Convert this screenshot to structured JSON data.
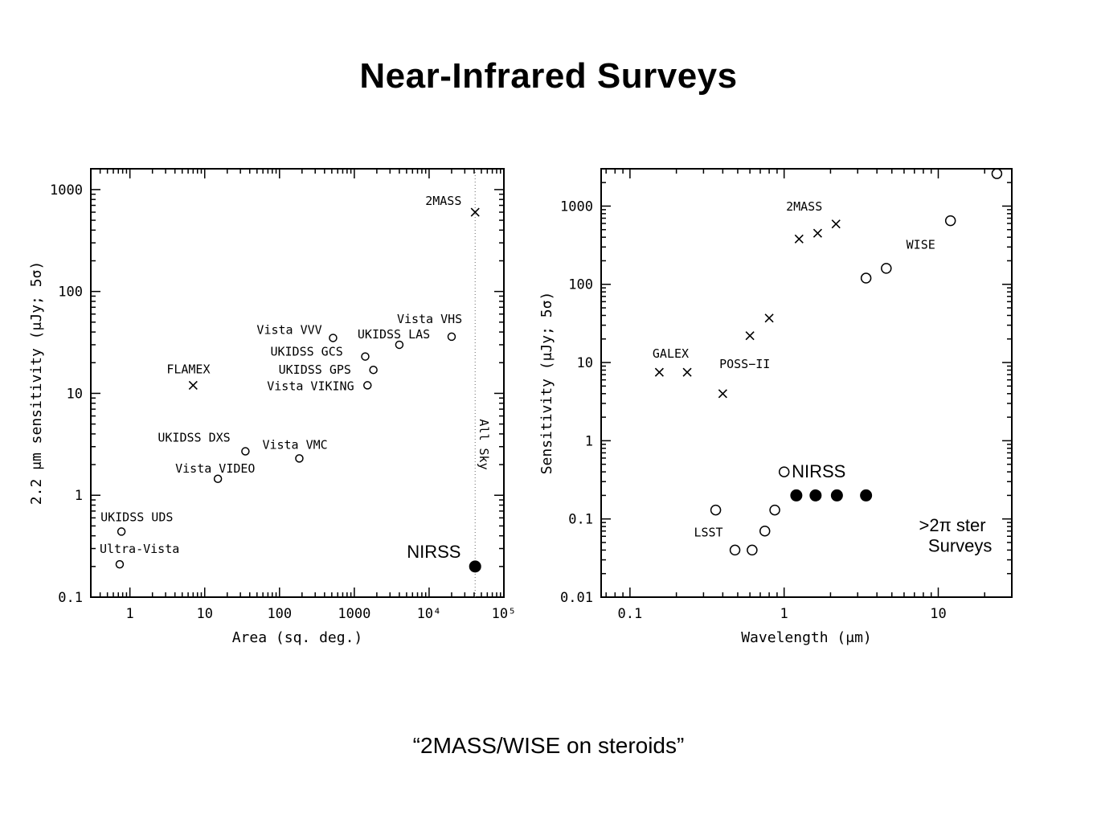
{
  "slide": {
    "title": "Near-Infrared Surveys",
    "caption": "“2MASS/WISE on steroids”"
  },
  "chart_data": [
    {
      "type": "scatter",
      "xscale": "log",
      "yscale": "log",
      "xlim": [
        0.3,
        100000
      ],
      "ylim": [
        0.1,
        1600
      ],
      "xlabel": "Area (sq. deg.)",
      "ylabel": "2.2 μm sensitivity (μJy; 5σ)",
      "xticks": [
        {
          "v": 1,
          "label": "1"
        },
        {
          "v": 10,
          "label": "10"
        },
        {
          "v": 100,
          "label": "100"
        },
        {
          "v": 1000,
          "label": "1000"
        },
        {
          "v": 10000,
          "label": "10⁴"
        },
        {
          "v": 100000,
          "label": "10⁵"
        }
      ],
      "yticks": [
        {
          "v": 0.1,
          "label": "0.1"
        },
        {
          "v": 1,
          "label": "1"
        },
        {
          "v": 10,
          "label": "10"
        },
        {
          "v": 100,
          "label": "100"
        },
        {
          "v": 1000,
          "label": "1000"
        }
      ],
      "all_sky": {
        "x": 41253,
        "label": "All Sky"
      },
      "points": [
        {
          "name": "2MASS",
          "x": 41253,
          "y": 600,
          "marker": "x",
          "label": "2MASS",
          "lx": -62,
          "ly": -9,
          "anchor": "start"
        },
        {
          "name": "FLAMEX",
          "x": 7,
          "y": 12,
          "marker": "x",
          "label": "FLAMEX",
          "lx": -33,
          "ly": -15,
          "anchor": "start"
        },
        {
          "name": "Vista VVV",
          "x": 520,
          "y": 35,
          "marker": "o",
          "label": "Vista VVV",
          "lx": -95,
          "ly": -5,
          "anchor": "start"
        },
        {
          "name": "UKIDSS GCS",
          "x": 1400,
          "y": 23,
          "marker": "o",
          "label": "UKIDSS GCS",
          "lx": -118,
          "ly": -1,
          "anchor": "start"
        },
        {
          "name": "UKIDSS GPS",
          "x": 1800,
          "y": 17,
          "marker": "o",
          "label": "UKIDSS GPS",
          "lx": -118,
          "ly": 5,
          "anchor": "start"
        },
        {
          "name": "Vista VIKING",
          "x": 1500,
          "y": 12,
          "marker": "o",
          "label": "Vista VIKING",
          "lx": -125,
          "ly": 6,
          "anchor": "start"
        },
        {
          "name": "UKIDSS LAS",
          "x": 4000,
          "y": 30,
          "marker": "o",
          "label": "UKIDSS LAS",
          "lx": -52,
          "ly": -8,
          "anchor": "start"
        },
        {
          "name": "Vista VHS",
          "x": 20000,
          "y": 36,
          "marker": "o",
          "label": "Vista VHS",
          "lx": -68,
          "ly": -17,
          "anchor": "start"
        },
        {
          "name": "UKIDSS DXS",
          "x": 35,
          "y": 2.7,
          "marker": "o",
          "label": "UKIDSS DXS",
          "lx": -109,
          "ly": -12,
          "anchor": "start"
        },
        {
          "name": "Vista VMC",
          "x": 184,
          "y": 2.3,
          "marker": "o",
          "label": "Vista VMC",
          "lx": -46,
          "ly": -12,
          "anchor": "start"
        },
        {
          "name": "Vista VIDEO",
          "x": 15,
          "y": 1.45,
          "marker": "o",
          "label": "Vista VIDEO",
          "lx": -53,
          "ly": -8,
          "anchor": "start"
        },
        {
          "name": "UKIDSS UDS",
          "x": 0.77,
          "y": 0.44,
          "marker": "o",
          "label": "UKIDSS UDS",
          "lx": -26,
          "ly": -13,
          "anchor": "start"
        },
        {
          "name": "Ultra-Vista",
          "x": 0.73,
          "y": 0.21,
          "marker": "o",
          "label": "Ultra-Vista",
          "lx": -25,
          "ly": -14,
          "anchor": "start"
        },
        {
          "name": "NIRSS",
          "x": 41253,
          "y": 0.2,
          "marker": "filled",
          "label": "NIRSS",
          "lx": -85,
          "ly": -11,
          "anchor": "start",
          "big": true
        }
      ]
    },
    {
      "type": "scatter",
      "xscale": "log",
      "yscale": "log",
      "xlim": [
        0.065,
        30
      ],
      "ylim": [
        0.01,
        3000
      ],
      "xlabel": "Wavelength (μm)",
      "ylabel": "Sensitivity (μJy; 5σ)",
      "xticks": [
        {
          "v": 0.1,
          "label": "0.1"
        },
        {
          "v": 1,
          "label": "1"
        },
        {
          "v": 10,
          "label": "10"
        }
      ],
      "yticks": [
        {
          "v": 0.01,
          "label": "0.01"
        },
        {
          "v": 0.1,
          "label": "0.1"
        },
        {
          "v": 1,
          "label": "1"
        },
        {
          "v": 10,
          "label": "10"
        },
        {
          "v": 100,
          "label": "100"
        },
        {
          "v": 1000,
          "label": "1000"
        }
      ],
      "points": [
        {
          "x": 0.155,
          "y": 7.5,
          "marker": "x"
        },
        {
          "x": 0.235,
          "y": 7.5,
          "marker": "x"
        },
        {
          "x": 0.4,
          "y": 4,
          "marker": "x"
        },
        {
          "x": 0.6,
          "y": 22,
          "marker": "x"
        },
        {
          "x": 0.8,
          "y": 37,
          "marker": "x"
        },
        {
          "x": 1.25,
          "y": 380,
          "marker": "x"
        },
        {
          "x": 1.65,
          "y": 450,
          "marker": "x"
        },
        {
          "x": 2.17,
          "y": 590,
          "marker": "x"
        },
        {
          "x": 3.4,
          "y": 120,
          "marker": "o"
        },
        {
          "x": 4.6,
          "y": 160,
          "marker": "o"
        },
        {
          "x": 12,
          "y": 650,
          "marker": "o"
        },
        {
          "x": 24,
          "y": 2600,
          "marker": "o"
        },
        {
          "x": 0.36,
          "y": 0.13,
          "marker": "o"
        },
        {
          "x": 0.48,
          "y": 0.04,
          "marker": "o"
        },
        {
          "x": 0.62,
          "y": 0.04,
          "marker": "o"
        },
        {
          "x": 0.75,
          "y": 0.07,
          "marker": "o"
        },
        {
          "x": 0.87,
          "y": 0.13,
          "marker": "o"
        },
        {
          "x": 1.0,
          "y": 0.4,
          "marker": "o"
        },
        {
          "x": 1.2,
          "y": 0.2,
          "marker": "filled"
        },
        {
          "x": 1.6,
          "y": 0.2,
          "marker": "filled"
        },
        {
          "x": 2.2,
          "y": 0.2,
          "marker": "filled"
        },
        {
          "x": 3.4,
          "y": 0.2,
          "marker": "filled"
        }
      ],
      "labels": [
        {
          "text": "2MASS",
          "x": 1.35,
          "y": 880,
          "anchor": "middle",
          "size": "small"
        },
        {
          "text": "WISE",
          "x": 6.2,
          "y": 285,
          "anchor": "start",
          "size": "small"
        },
        {
          "text": "GALEX",
          "x": 0.14,
          "y": 11.5,
          "anchor": "start",
          "size": "small"
        },
        {
          "text": "POSS−II",
          "x": 0.38,
          "y": 8.5,
          "anchor": "start",
          "size": "small"
        },
        {
          "text": "LSST",
          "x": 0.26,
          "y": 0.06,
          "anchor": "start",
          "size": "small"
        },
        {
          "text": "NIRSS",
          "x": 1.12,
          "y": 0.34,
          "anchor": "start",
          "size": "big"
        },
        {
          "text": ">2π ster",
          "x": 7.5,
          "y": 0.07,
          "anchor": "start",
          "size": "big"
        },
        {
          "text": "Surveys",
          "x": 8.6,
          "y": 0.038,
          "anchor": "start",
          "size": "big"
        }
      ]
    }
  ]
}
